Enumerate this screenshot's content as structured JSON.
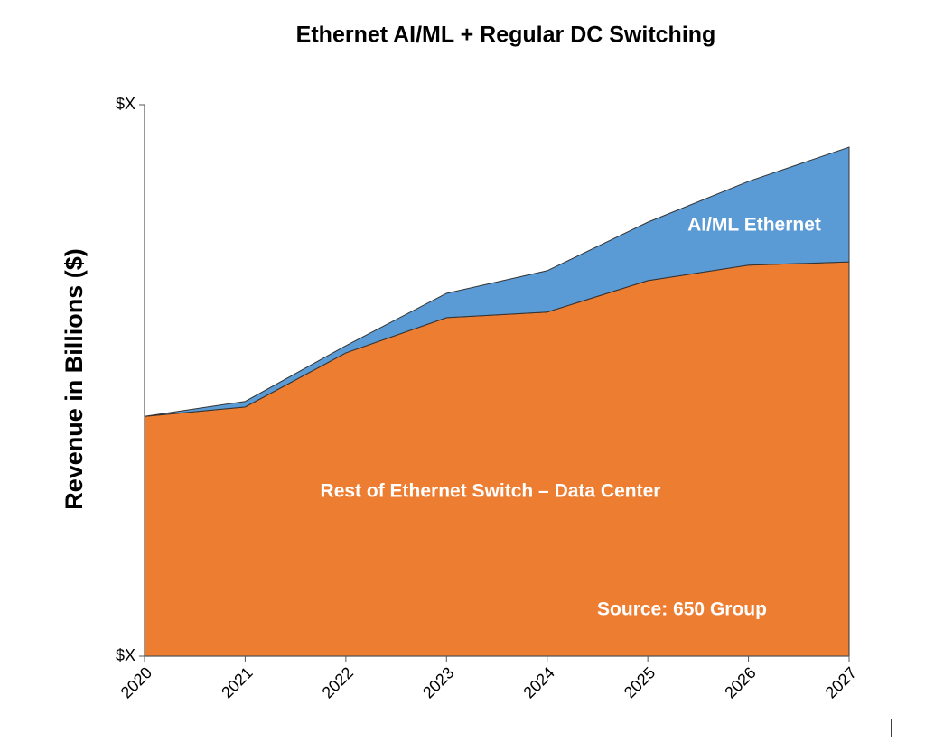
{
  "chart_data": {
    "type": "stacked-area",
    "title": "Ethernet AI/ML + Regular DC Switching",
    "y_label": "Revenue  in Billions ($)",
    "categories": [
      "2020",
      "2021",
      "2022",
      "2023",
      "2024",
      "2025",
      "2026",
      "2027"
    ],
    "series": [
      {
        "name": "Rest of Ethernet Switch – Data Center",
        "color": "#ed7d31",
        "values": [
          43.5,
          45.2,
          55.0,
          61.4,
          62.4,
          68.1,
          70.9,
          71.5
        ]
      },
      {
        "name": "AI/ML Ethernet",
        "color": "#5b9bd5",
        "values": [
          0,
          1.0,
          1.3,
          4.4,
          7.5,
          10.6,
          15.2,
          20.8
        ]
      }
    ],
    "ylim": [
      0,
      100
    ],
    "yticks": [
      {
        "value": 0,
        "label": "$X"
      },
      {
        "value": 100,
        "label": "$X"
      }
    ],
    "annotation": "Source: 650 Group",
    "grid": false
  }
}
